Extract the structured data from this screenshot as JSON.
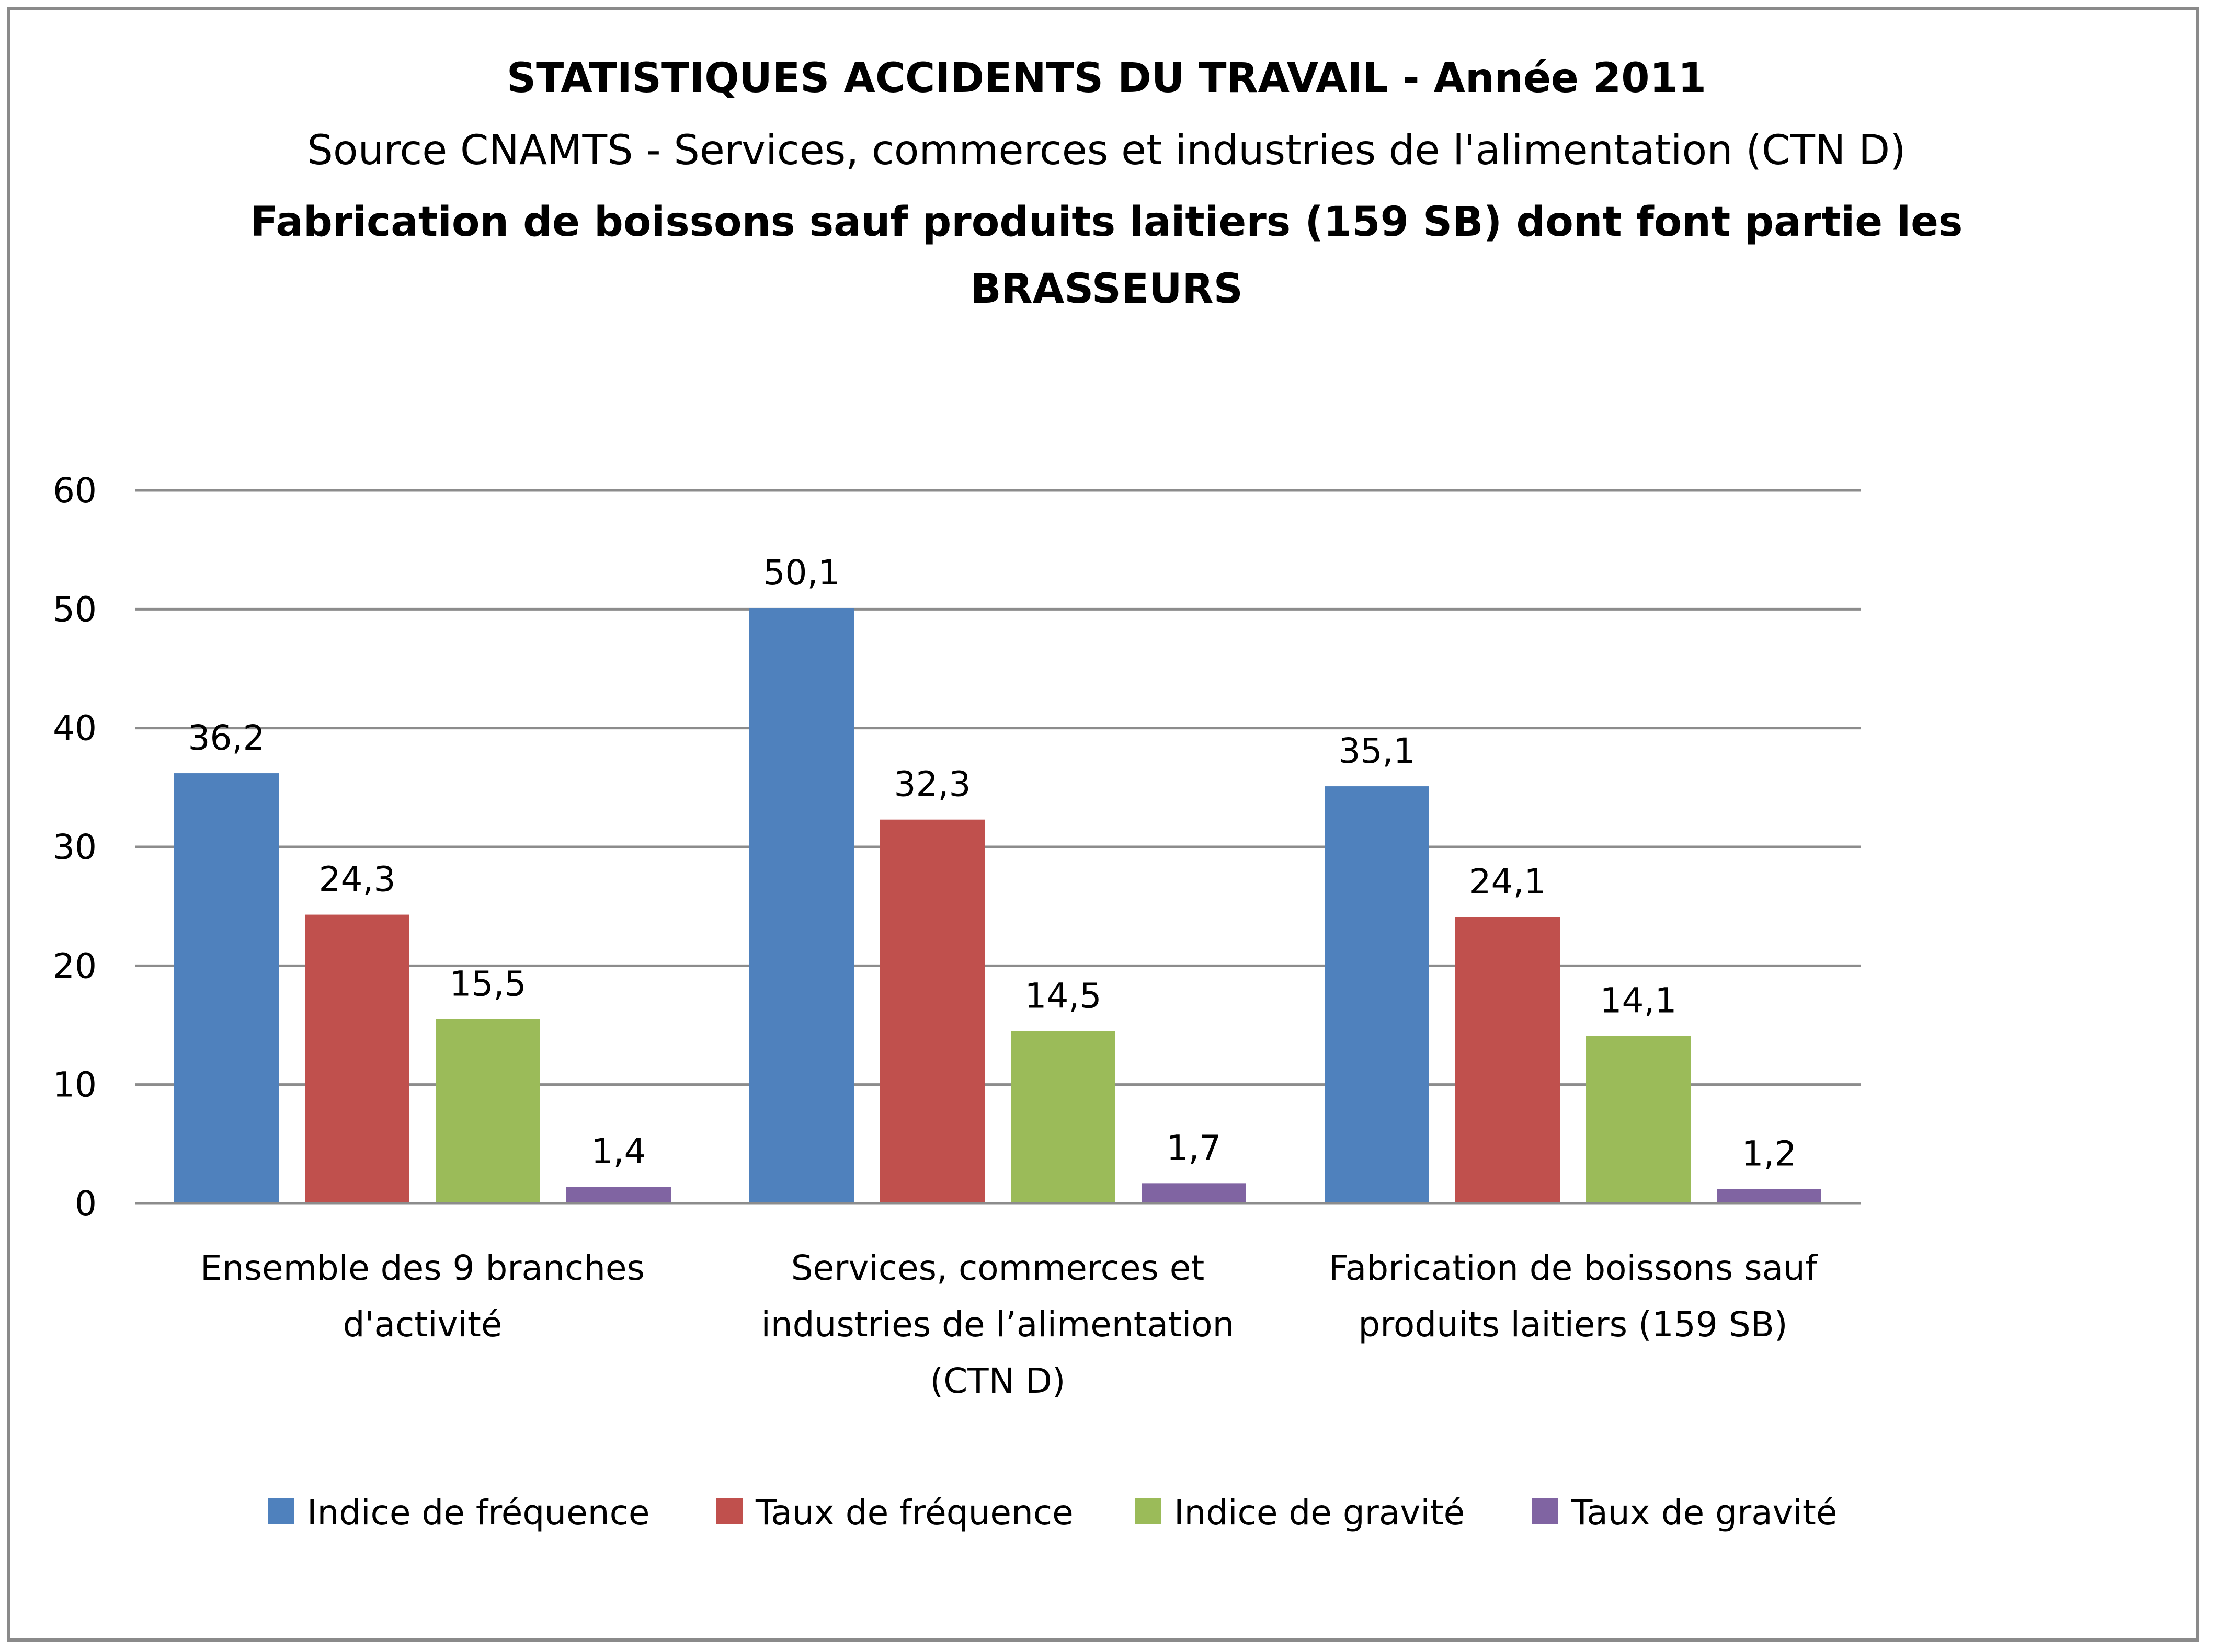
{
  "chart_data": {
    "type": "bar",
    "title": "STATISTIQUES ACCIDENTS DU TRAVAIL - Année 2011",
    "subtitle": "Source CNAMTS - Services, commerces et industries de l'alimentation (CTN D)",
    "subtitle2_line1": "Fabrication de boissons sauf produits laitiers (159 SB) dont font partie les",
    "subtitle2_line2": "BRASSEURS",
    "categories": [
      [
        "Ensemble des 9 branches",
        "d'activité"
      ],
      [
        "Services, commerces et",
        "industries de l’alimentation",
        "(CTN D)"
      ],
      [
        "Fabrication de boissons sauf",
        "produits laitiers (159 SB)"
      ]
    ],
    "series": [
      {
        "name": "Indice de fréquence",
        "color": "#4f81bd",
        "values": [
          36.2,
          50.1,
          35.1
        ],
        "labels": [
          "36,2",
          "50,1",
          "35,1"
        ]
      },
      {
        "name": "Taux de fréquence",
        "color": "#c0504d",
        "values": [
          24.3,
          32.3,
          24.1
        ],
        "labels": [
          "24,3",
          "32,3",
          "24,1"
        ]
      },
      {
        "name": "Indice de gravité",
        "color": "#9bbb59",
        "values": [
          15.5,
          14.5,
          14.1
        ],
        "labels": [
          "15,5",
          "14,5",
          "14,1"
        ]
      },
      {
        "name": "Taux de gravité",
        "color": "#8064a2",
        "values": [
          1.4,
          1.7,
          1.2
        ],
        "labels": [
          "1,4",
          "1,7",
          "1,2"
        ]
      }
    ],
    "ylim": [
      0,
      60
    ],
    "yticks": [
      0,
      10,
      20,
      30,
      40,
      50,
      60
    ],
    "grid": true,
    "legend_position": "bottom"
  }
}
